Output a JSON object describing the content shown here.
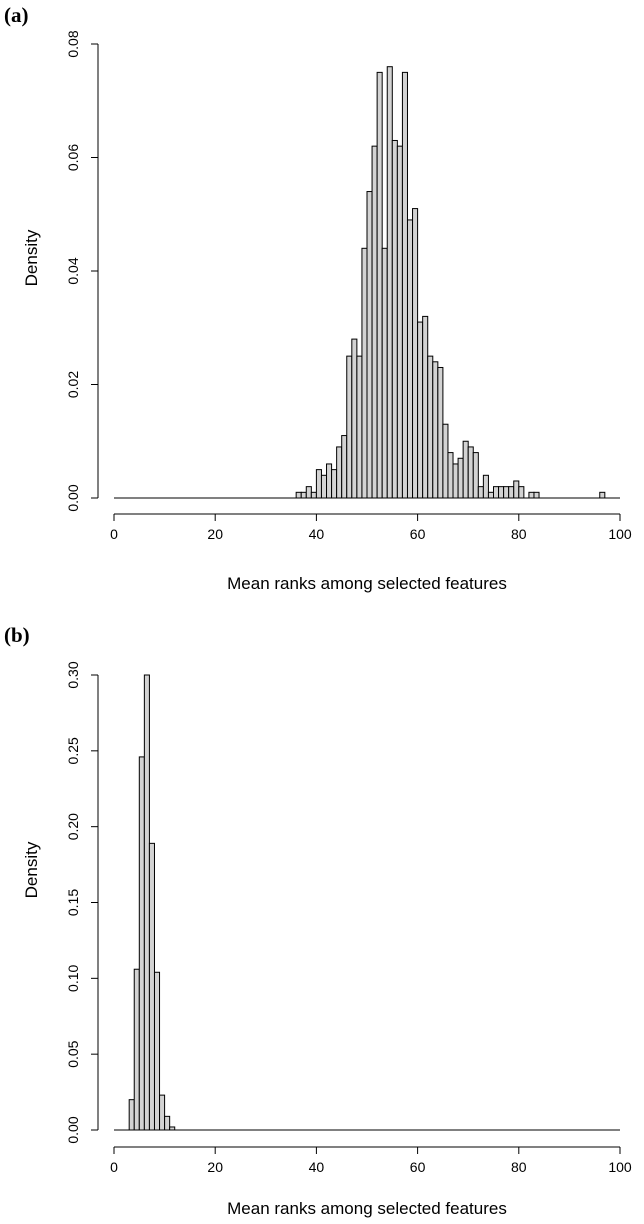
{
  "chart_data": [
    {
      "panel": "(a)",
      "type": "bar",
      "xlabel": "Mean ranks among selected features",
      "ylabel": "Density",
      "xlim": [
        0,
        100
      ],
      "ylim": [
        0,
        0.08
      ],
      "x_ticks": [
        0,
        20,
        40,
        60,
        80,
        100
      ],
      "y_ticks": [
        0.0,
        0.02,
        0.04,
        0.06,
        0.08
      ],
      "y_tick_labels": [
        "0.00",
        "0.02",
        "0.04",
        "0.06",
        "0.08"
      ],
      "bin_start": 0,
      "bin_width": 1,
      "values": [
        0,
        0,
        0,
        0,
        0,
        0,
        0,
        0,
        0,
        0,
        0,
        0,
        0,
        0,
        0,
        0,
        0,
        0,
        0,
        0,
        0,
        0,
        0,
        0,
        0,
        0,
        0,
        0,
        0,
        0,
        0,
        0,
        0,
        0,
        0,
        0,
        0.001,
        0.001,
        0.002,
        0.001,
        0.005,
        0.004,
        0.006,
        0.005,
        0.009,
        0.011,
        0.025,
        0.028,
        0.025,
        0.044,
        0.054,
        0.062,
        0.075,
        0.044,
        0.076,
        0.063,
        0.062,
        0.075,
        0.049,
        0.051,
        0.031,
        0.032,
        0.025,
        0.024,
        0.023,
        0.013,
        0.008,
        0.006,
        0.007,
        0.01,
        0.009,
        0.008,
        0.002,
        0.004,
        0.001,
        0.002,
        0.002,
        0.002,
        0.002,
        0.003,
        0.002,
        0,
        0.001,
        0.001,
        0,
        0,
        0,
        0,
        0,
        0,
        0,
        0,
        0,
        0,
        0,
        0,
        0.001,
        0,
        0,
        0
      ]
    },
    {
      "panel": "(b)",
      "type": "bar",
      "xlabel": "Mean ranks among selected features",
      "ylabel": "Density",
      "xlim": [
        0,
        100
      ],
      "ylim": [
        0,
        0.3
      ],
      "x_ticks": [
        0,
        20,
        40,
        60,
        80,
        100
      ],
      "y_ticks": [
        0.0,
        0.05,
        0.1,
        0.15,
        0.2,
        0.25,
        0.3
      ],
      "y_tick_labels": [
        "0.00",
        "0.05",
        "0.10",
        "0.15",
        "0.20",
        "0.25",
        "0.30"
      ],
      "bin_start": 0,
      "bin_width": 1,
      "values": [
        0,
        0,
        0,
        0.02,
        0.106,
        0.246,
        0.3,
        0.189,
        0.104,
        0.023,
        0.009,
        0.002,
        0,
        0,
        0,
        0,
        0,
        0,
        0,
        0,
        0,
        0,
        0,
        0,
        0,
        0,
        0,
        0,
        0,
        0,
        0,
        0,
        0,
        0,
        0,
        0,
        0,
        0,
        0,
        0,
        0,
        0,
        0,
        0,
        0,
        0,
        0,
        0,
        0,
        0,
        0,
        0,
        0,
        0,
        0,
        0,
        0,
        0,
        0,
        0,
        0,
        0,
        0,
        0,
        0,
        0,
        0,
        0,
        0,
        0,
        0,
        0,
        0,
        0,
        0,
        0,
        0,
        0,
        0,
        0,
        0,
        0,
        0,
        0,
        0,
        0,
        0,
        0,
        0,
        0,
        0,
        0,
        0,
        0,
        0,
        0,
        0,
        0,
        0,
        0
      ]
    }
  ]
}
